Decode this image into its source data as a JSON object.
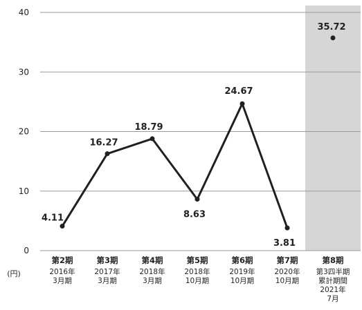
{
  "chart_data": {
    "type": "line",
    "unit": "(円)",
    "ylim": [
      0,
      40
    ],
    "yticks": [
      "0",
      "10",
      "20",
      "30",
      "40"
    ],
    "grid": true,
    "highlight_color": "#d6d6d6",
    "line_color": "#231f20",
    "categories": [
      {
        "name": "第2期",
        "date_lines": [
          "2016年",
          "3月期"
        ]
      },
      {
        "name": "第3期",
        "date_lines": [
          "2017年",
          "3月期"
        ]
      },
      {
        "name": "第4期",
        "date_lines": [
          "2018年",
          "3月期"
        ]
      },
      {
        "name": "第5期",
        "date_lines": [
          "2018年",
          "10月期"
        ]
      },
      {
        "name": "第6期",
        "date_lines": [
          "2019年",
          "10月期"
        ]
      },
      {
        "name": "第7期",
        "date_lines": [
          "2020年",
          "10月期"
        ]
      },
      {
        "name": "第8期",
        "date_lines": [
          "第3四半期",
          "累計期間",
          "2021年",
          "7月"
        ]
      }
    ],
    "values": [
      4.11,
      16.27,
      18.79,
      8.63,
      24.67,
      3.81,
      35.72
    ],
    "labels": [
      "4.11",
      "16.27",
      "18.79",
      "8.63",
      "24.67",
      "3.81",
      "35.72"
    ],
    "connected_count": 6,
    "highlight_index": 6
  }
}
